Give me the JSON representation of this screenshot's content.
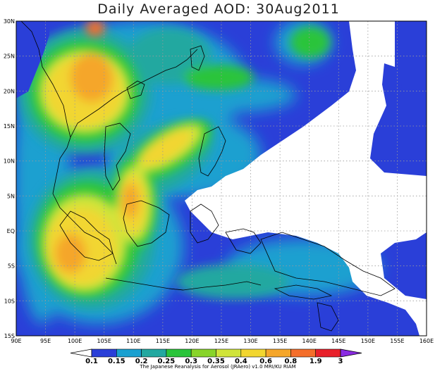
{
  "map": {
    "title": "Daily Averaged AOD: 30Aug2011",
    "credit": "The Japanese Reanalysis for Aerosol (JRAero) v1.0 MRI/KU RIAM",
    "lon_labels": [
      "90E",
      "95E",
      "100E",
      "105E",
      "110E",
      "115E",
      "120E",
      "125E",
      "130E",
      "135E",
      "140E",
      "145E",
      "150E",
      "155E",
      "160E"
    ],
    "lat_labels": [
      "30N",
      "25N",
      "20N",
      "15N",
      "10N",
      "5N",
      "EQ",
      "5S",
      "10S",
      "15S"
    ],
    "extent": {
      "lon": [
        90,
        160
      ],
      "lat": [
        -15,
        30
      ]
    }
  },
  "colorbar": {
    "labels": [
      "0.1",
      "0.15",
      "0.2",
      "0.25",
      "0.3",
      "0.35",
      "0.4",
      "0.6",
      "0.8",
      "1.9",
      "3"
    ],
    "colors": [
      "#2a3fd8",
      "#1aa0d0",
      "#22a8a0",
      "#2ac43a",
      "#88d42a",
      "#d0e43a",
      "#f2d630",
      "#f5a62a",
      "#f46e2a",
      "#e8202a",
      "#8a2be2"
    ]
  },
  "chart_data": {
    "type": "heatmap",
    "title": "Daily Averaged AOD: 30Aug2011",
    "xlim": [
      90,
      160
    ],
    "ylim": [
      -15,
      30
    ],
    "colorbar_levels": [
      0.1,
      0.15,
      0.2,
      0.25,
      0.3,
      0.35,
      0.4,
      0.6,
      0.8,
      1.9,
      3
    ]
  }
}
